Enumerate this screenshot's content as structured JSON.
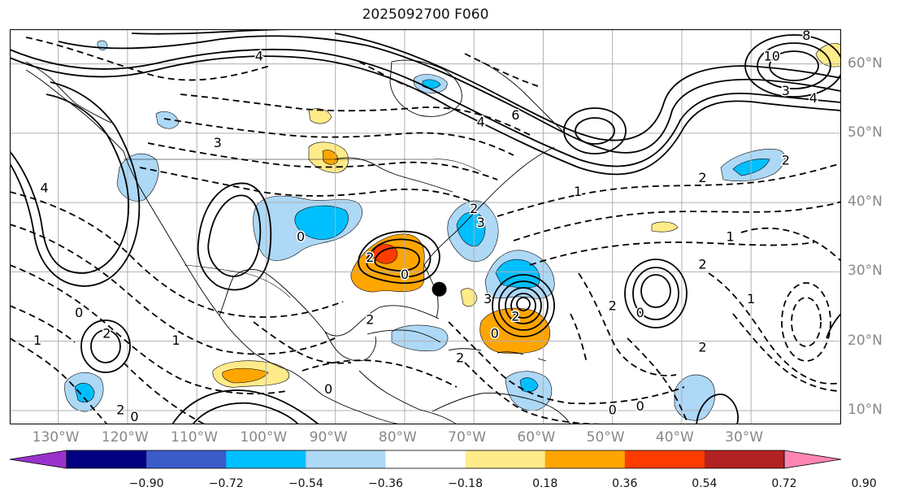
{
  "title": "2025092700 F060",
  "map": {
    "lon_range": [
      -137,
      -17
    ],
    "lat_range": [
      8,
      65
    ],
    "lon_ticks": [
      "130°W",
      "120°W",
      "110°W",
      "100°W",
      "90°W",
      "80°W",
      "70°W",
      "60°W",
      "50°W",
      "40°W",
      "30°W"
    ],
    "lat_ticks": [
      "60°N",
      "50°N",
      "40°N",
      "30°N",
      "20°N",
      "10°N"
    ],
    "marker": {
      "lon": -75,
      "lat": 27.5,
      "shape": "black-dot"
    },
    "contour_labels": [
      {
        "text": "4",
        "lon": -101,
        "lat": 61
      },
      {
        "text": "3",
        "lon": -107,
        "lat": 48.5
      },
      {
        "text": "4",
        "lon": -132,
        "lat": 42
      },
      {
        "text": "0",
        "lon": -95,
        "lat": 35
      },
      {
        "text": "2",
        "lon": -85,
        "lat": 32
      },
      {
        "text": "0",
        "lon": -80,
        "lat": 29.5
      },
      {
        "text": "3",
        "lon": -68,
        "lat": 26
      },
      {
        "text": "2",
        "lon": -64,
        "lat": 23.5
      },
      {
        "text": "0",
        "lon": -67,
        "lat": 21
      },
      {
        "text": "2",
        "lon": -72,
        "lat": 17.5
      },
      {
        "text": "2",
        "lon": -70,
        "lat": 39
      },
      {
        "text": "3",
        "lon": -69,
        "lat": 37
      },
      {
        "text": "1",
        "lon": -55,
        "lat": 41.5
      },
      {
        "text": "4",
        "lon": -69,
        "lat": 51.5
      },
      {
        "text": "6",
        "lon": -64,
        "lat": 52.5
      },
      {
        "text": "4",
        "lon": -21,
        "lat": 55
      },
      {
        "text": "3",
        "lon": -25,
        "lat": 56
      },
      {
        "text": "10",
        "lon": -27,
        "lat": 61
      },
      {
        "text": "8",
        "lon": -22,
        "lat": 64
      },
      {
        "text": "2",
        "lon": -25,
        "lat": 46
      },
      {
        "text": "2",
        "lon": -37,
        "lat": 43.5
      },
      {
        "text": "1",
        "lon": -33,
        "lat": 35
      },
      {
        "text": "2",
        "lon": -37,
        "lat": 31
      },
      {
        "text": "2",
        "lon": -50,
        "lat": 25
      },
      {
        "text": "0",
        "lon": -46,
        "lat": 24
      },
      {
        "text": "1",
        "lon": -30,
        "lat": 26
      },
      {
        "text": "2",
        "lon": -37,
        "lat": 19
      },
      {
        "text": "0",
        "lon": -46,
        "lat": 10.5
      },
      {
        "text": "0",
        "lon": -50,
        "lat": 10
      },
      {
        "text": "1",
        "lon": -113,
        "lat": 20
      },
      {
        "text": "0",
        "lon": -91,
        "lat": 13
      },
      {
        "text": "0",
        "lon": -119,
        "lat": 9
      },
      {
        "text": "2",
        "lon": -121,
        "lat": 10
      },
      {
        "text": "0",
        "lon": -127,
        "lat": 24
      },
      {
        "text": "2",
        "lon": -123,
        "lat": 21
      },
      {
        "text": "1",
        "lon": -133,
        "lat": 20
      },
      {
        "text": "2",
        "lon": -85,
        "lat": 23
      }
    ]
  },
  "colorbar": {
    "colors": [
      "#9932CC",
      "#000080",
      "#3B5BC9",
      "#00BFFF",
      "#ADD8F6",
      "#FFFFFF",
      "#FFEB8A",
      "#FFA500",
      "#FF3C00",
      "#B22222",
      "#FF85B3"
    ],
    "tick_labels": [
      "−0.90",
      "−0.72",
      "−0.54",
      "−0.36",
      "−0.18",
      "0.18",
      "0.36",
      "0.54",
      "0.72",
      "0.90"
    ]
  }
}
